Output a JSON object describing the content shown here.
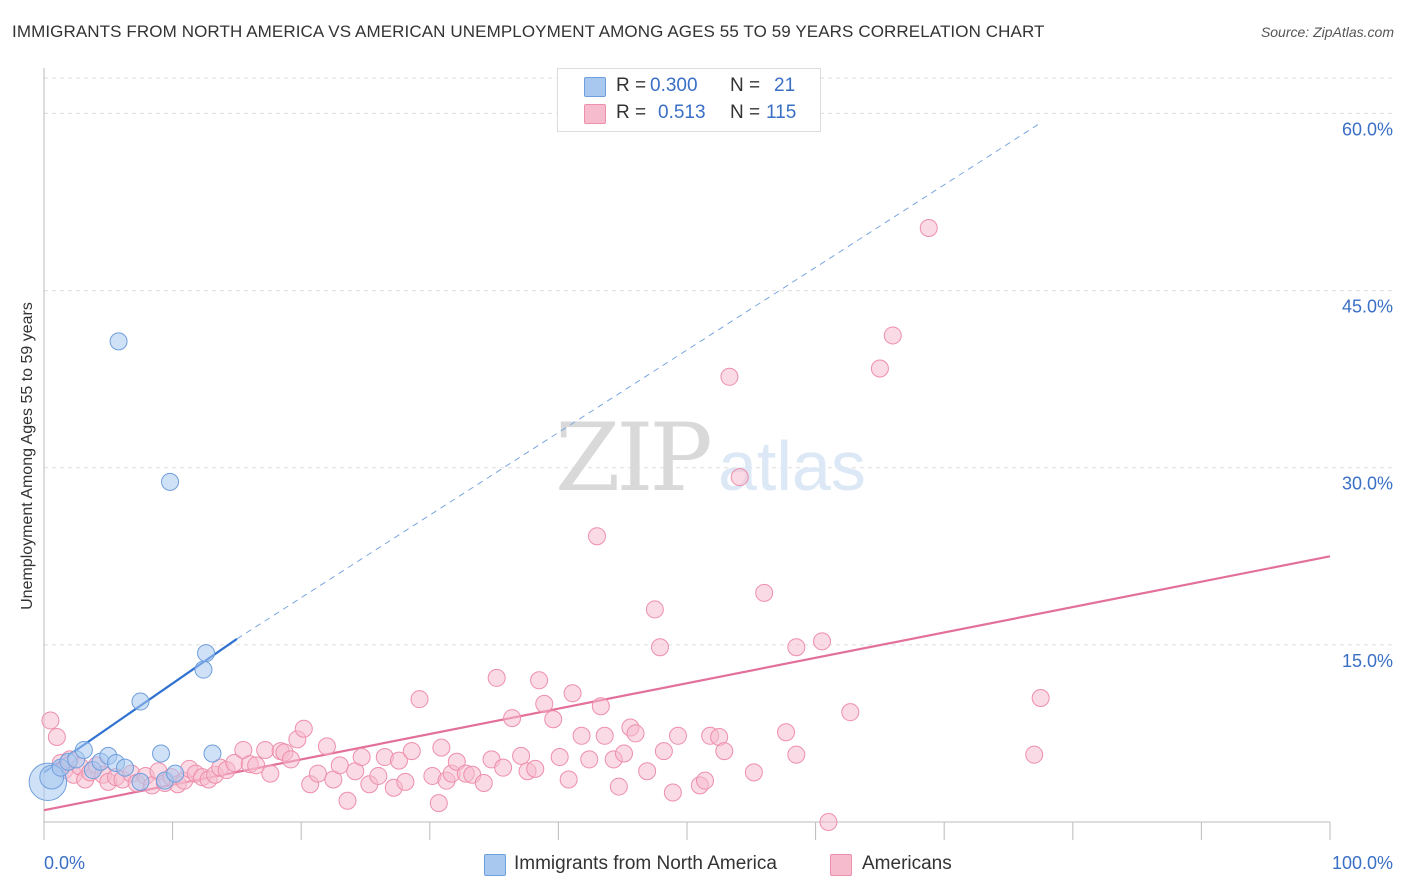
{
  "title": "IMMIGRANTS FROM NORTH AMERICA VS AMERICAN UNEMPLOYMENT AMONG AGES 55 TO 59 YEARS CORRELATION CHART",
  "source": "Source: ZipAtlas.com",
  "watermark": {
    "zip": "ZIP",
    "atlas": "atlas"
  },
  "legend_top": {
    "rows": [
      {
        "r_label": "R =",
        "r_value": "0.300",
        "n_label": "N =",
        "n_value": "21",
        "color": "#a8c8f0",
        "border": "#6f9fdc"
      },
      {
        "r_label": "R =",
        "r_value": "0.513",
        "n_label": "N =",
        "n_value": "115",
        "color": "#f6bccd",
        "border": "#ee8fac"
      }
    ]
  },
  "legend_bottom": {
    "items": [
      {
        "label": "Immigrants from North America",
        "color": "#a8c8f0",
        "border": "#6f9fdc"
      },
      {
        "label": "Americans",
        "color": "#f6bccd",
        "border": "#ee8fac"
      }
    ]
  },
  "chart_data": {
    "type": "scatter",
    "title": "IMMIGRANTS FROM NORTH AMERICA VS AMERICAN UNEMPLOYMENT AMONG AGES 55 TO 59 YEARS CORRELATION CHART",
    "xlabel": "",
    "ylabel": "Unemployment Among Ages 55 to 59 years",
    "xlim": [
      0,
      100
    ],
    "ylim": [
      0,
      63
    ],
    "x_tick_labels": [
      "0.0%",
      "100.0%"
    ],
    "y_ticks": [
      15,
      30,
      45,
      60
    ],
    "y_tick_labels": [
      "15.0%",
      "30.0%",
      "45.0%",
      "60.0%"
    ],
    "grid": true,
    "series": [
      {
        "name": "Immigrants from North America",
        "color": "#a8c8f0",
        "stroke": "#6f9fdc",
        "line_color": "#2f72d0",
        "trend": {
          "x0": 0,
          "y0": 4.2,
          "x1": 15,
          "y1": 15.5,
          "dashed_to_x": 77.5,
          "dashed_to_y": 59.2
        },
        "points": [
          [
            0.3,
            3.4,
            2.2
          ],
          [
            0.6,
            3.8,
            1.4
          ],
          [
            1.3,
            4.6,
            1
          ],
          [
            1.9,
            5.1,
            1
          ],
          [
            2.5,
            5.3,
            1
          ],
          [
            3.1,
            6.1,
            1
          ],
          [
            3.8,
            4.4,
            1
          ],
          [
            4.4,
            5.1,
            1
          ],
          [
            5.0,
            5.6,
            1
          ],
          [
            5.6,
            5.0,
            1
          ],
          [
            6.3,
            4.6,
            1
          ],
          [
            7.5,
            3.4,
            1
          ],
          [
            5.8,
            40.7,
            1
          ],
          [
            7.5,
            10.2,
            1
          ],
          [
            9.4,
            3.5,
            1
          ],
          [
            9.1,
            5.8,
            1
          ],
          [
            10.2,
            4.1,
            1
          ],
          [
            9.8,
            28.8,
            1
          ],
          [
            12.4,
            12.9,
            1
          ],
          [
            12.6,
            14.3,
            1
          ],
          [
            13.1,
            5.8,
            1
          ]
        ]
      },
      {
        "name": "Americans",
        "color": "#f6bccd",
        "stroke": "#ee8fac",
        "line_color": "#e2709a",
        "trend": {
          "x0": 0,
          "y0": 1.0,
          "x1": 100,
          "y1": 22.5
        },
        "points": [
          [
            0.5,
            8.6
          ],
          [
            1.0,
            7.2
          ],
          [
            1.3,
            5.0
          ],
          [
            1.6,
            4.4
          ],
          [
            2.0,
            5.3
          ],
          [
            2.3,
            4.0
          ],
          [
            2.8,
            4.7
          ],
          [
            3.2,
            3.6
          ],
          [
            3.6,
            4.2
          ],
          [
            4.1,
            4.8
          ],
          [
            4.6,
            4.0
          ],
          [
            5.0,
            3.4
          ],
          [
            5.6,
            3.8
          ],
          [
            6.1,
            3.6
          ],
          [
            6.8,
            4.1
          ],
          [
            7.2,
            3.3
          ],
          [
            7.9,
            3.9
          ],
          [
            8.4,
            3.1
          ],
          [
            8.9,
            4.3
          ],
          [
            9.4,
            3.3
          ],
          [
            9.9,
            3.8
          ],
          [
            10.4,
            3.2
          ],
          [
            10.9,
            3.5
          ],
          [
            11.3,
            4.5
          ],
          [
            11.8,
            4.1
          ],
          [
            12.3,
            3.8
          ],
          [
            12.8,
            3.6
          ],
          [
            13.3,
            4.0
          ],
          [
            13.7,
            4.6
          ],
          [
            14.2,
            4.4
          ],
          [
            14.8,
            5.0
          ],
          [
            15.5,
            6.1
          ],
          [
            16.0,
            4.9
          ],
          [
            16.5,
            4.8
          ],
          [
            17.2,
            6.1
          ],
          [
            17.6,
            4.1
          ],
          [
            18.4,
            6.0
          ],
          [
            18.7,
            5.9
          ],
          [
            19.2,
            5.3
          ],
          [
            19.7,
            7.0
          ],
          [
            20.2,
            7.9
          ],
          [
            20.7,
            3.2
          ],
          [
            21.3,
            4.1
          ],
          [
            22.0,
            6.4
          ],
          [
            22.5,
            3.6
          ],
          [
            23.0,
            4.8
          ],
          [
            23.6,
            1.8
          ],
          [
            24.2,
            4.3
          ],
          [
            24.7,
            5.5
          ],
          [
            25.3,
            3.2
          ],
          [
            26.0,
            3.9
          ],
          [
            26.5,
            5.5
          ],
          [
            27.2,
            2.9
          ],
          [
            27.6,
            5.2
          ],
          [
            28.1,
            3.4
          ],
          [
            28.6,
            6.0
          ],
          [
            29.2,
            10.4
          ],
          [
            30.2,
            3.9
          ],
          [
            30.7,
            1.6
          ],
          [
            30.9,
            6.3
          ],
          [
            31.3,
            3.5
          ],
          [
            31.7,
            4.1
          ],
          [
            32.1,
            5.1
          ],
          [
            32.8,
            4.1
          ],
          [
            33.3,
            4.0
          ],
          [
            34.2,
            3.3
          ],
          [
            34.8,
            5.3
          ],
          [
            35.2,
            12.2
          ],
          [
            35.7,
            4.6
          ],
          [
            36.4,
            8.8
          ],
          [
            37.1,
            5.6
          ],
          [
            37.6,
            4.3
          ],
          [
            38.2,
            4.5
          ],
          [
            38.5,
            12.0
          ],
          [
            38.9,
            10.0
          ],
          [
            39.6,
            8.7
          ],
          [
            40.1,
            5.5
          ],
          [
            40.8,
            3.6
          ],
          [
            41.1,
            10.9
          ],
          [
            41.8,
            7.3
          ],
          [
            42.4,
            5.3
          ],
          [
            43.0,
            24.2
          ],
          [
            43.3,
            9.8
          ],
          [
            43.6,
            7.3
          ],
          [
            44.3,
            5.3
          ],
          [
            44.7,
            3.0
          ],
          [
            45.1,
            5.8
          ],
          [
            45.6,
            8.0
          ],
          [
            46.0,
            7.5
          ],
          [
            46.9,
            4.3
          ],
          [
            47.5,
            18.0
          ],
          [
            47.9,
            14.8
          ],
          [
            48.2,
            6.0
          ],
          [
            48.9,
            2.5
          ],
          [
            49.3,
            7.3
          ],
          [
            51.0,
            3.1
          ],
          [
            51.4,
            3.5
          ],
          [
            51.8,
            7.3
          ],
          [
            52.5,
            7.2
          ],
          [
            52.9,
            6.0
          ],
          [
            53.3,
            37.7
          ],
          [
            54.1,
            29.2
          ],
          [
            55.2,
            4.2
          ],
          [
            56.0,
            19.4
          ],
          [
            57.7,
            7.6
          ],
          [
            58.5,
            14.8
          ],
          [
            58.5,
            5.7
          ],
          [
            60.5,
            15.3
          ],
          [
            62.7,
            9.3
          ],
          [
            65.0,
            38.4
          ],
          [
            66.0,
            41.2
          ],
          [
            68.8,
            50.3
          ],
          [
            77.5,
            10.5
          ],
          [
            61.0,
            0.0
          ],
          [
            77.0,
            5.7
          ]
        ]
      }
    ]
  }
}
